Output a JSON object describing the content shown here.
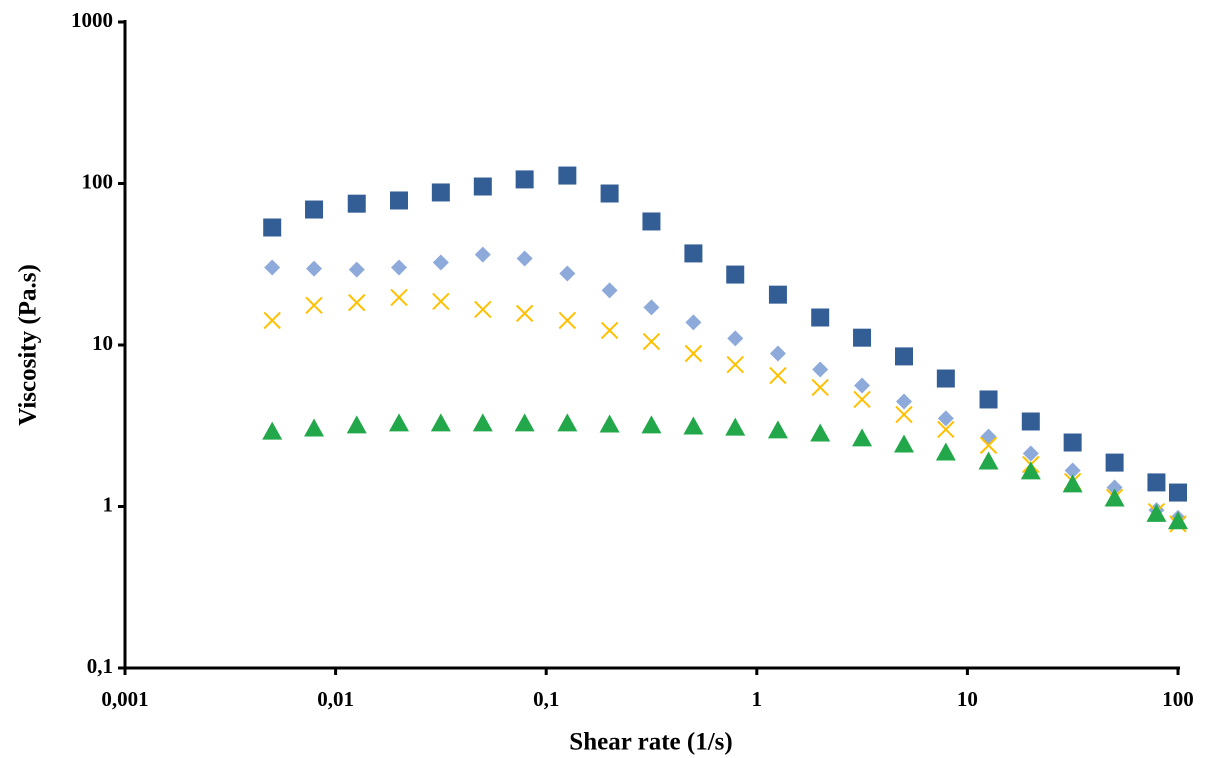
{
  "chart_data": {
    "type": "scatter",
    "xlabel": "Shear rate (1/s)",
    "ylabel": "Viscosity (Pa.s)",
    "xscale": "log",
    "yscale": "log",
    "x": [
      0.005,
      0.0079,
      0.0126,
      0.02,
      0.0316,
      0.05,
      0.079,
      0.126,
      0.2,
      0.316,
      0.5,
      0.79,
      1.26,
      2,
      3.16,
      5,
      7.9,
      12.6,
      20,
      31.6,
      50,
      79,
      100
    ],
    "series": [
      {
        "color": "#335e95",
        "marker": "square",
        "values": [
          53.4,
          69,
          75,
          78.5,
          88,
          95.8,
          106,
          112,
          86.7,
          58.2,
          36.9,
          27.3,
          20.5,
          14.8,
          11.1,
          8.5,
          6.2,
          4.6,
          3.36,
          2.49,
          1.87,
          1.41,
          1.22
        ]
      },
      {
        "color": "#8eaadb",
        "marker": "diamond",
        "values": [
          30.2,
          29.7,
          29.3,
          30.2,
          32.4,
          36.3,
          34.3,
          27.7,
          21.8,
          17.1,
          13.8,
          11.0,
          8.86,
          7.05,
          5.61,
          4.47,
          3.51,
          2.71,
          2.13,
          1.67,
          1.31,
          0.95,
          0.85
        ]
      },
      {
        "color": "#ffc000",
        "marker": "x",
        "values": [
          14.2,
          17.6,
          18.3,
          19.7,
          18.6,
          16.6,
          15.7,
          14.2,
          12.3,
          10.5,
          8.86,
          7.57,
          6.47,
          5.46,
          4.6,
          3.71,
          3.0,
          2.39,
          1.82,
          1.43,
          1.14,
          0.93,
          0.78
        ]
      },
      {
        "color": "#22a84a",
        "marker": "triangle",
        "values": [
          2.91,
          3.04,
          3.18,
          3.27,
          3.27,
          3.27,
          3.27,
          3.27,
          3.22,
          3.18,
          3.13,
          3.08,
          2.96,
          2.83,
          2.64,
          2.42,
          2.16,
          1.9,
          1.65,
          1.37,
          1.12,
          0.9,
          0.81
        ]
      }
    ],
    "xlim": [
      0.001,
      100
    ],
    "xticks": [
      {
        "value": 0.001,
        "label": "0,001"
      },
      {
        "value": 0.01,
        "label": "0,01"
      },
      {
        "value": 0.1,
        "label": "0,1"
      },
      1,
      10,
      100
    ],
    "ylim": [
      0.1,
      1000
    ],
    "yticks": [
      {
        "value": 0.1,
        "label": "0,1"
      },
      1,
      10,
      100,
      1000
    ],
    "grid": false
  }
}
